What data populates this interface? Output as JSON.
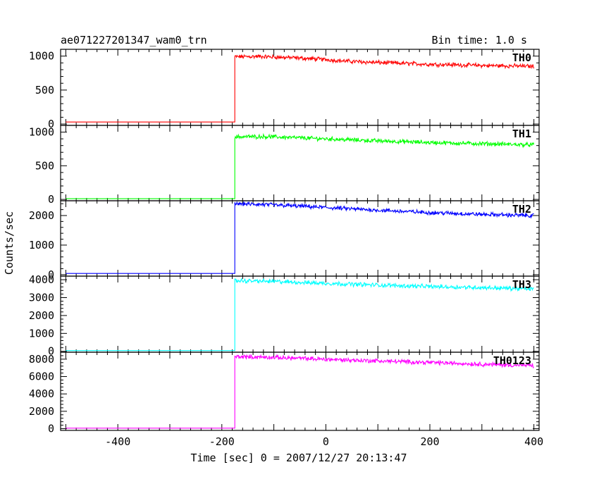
{
  "chart_data": {
    "type": "line",
    "title": "ae071227201347_wam0_trn",
    "bin_label": "Bin time: 1.0 s",
    "xlabel": "Time [sec] 0 = 2007/12/27 20:13:47",
    "ylabel": "Counts/sec",
    "xlim": [
      -510,
      410
    ],
    "xticks": [
      -400,
      -200,
      0,
      200,
      400
    ],
    "onset_x": -175,
    "panels": [
      {
        "name": "TH0",
        "color": "#ff0000",
        "ylim": [
          -20,
          1100
        ],
        "yticks": [
          0,
          500,
          1000
        ],
        "baseline": 30,
        "points": [
          [
            -175,
            990
          ],
          [
            -130,
            995
          ],
          [
            -60,
            975
          ],
          [
            0,
            950
          ],
          [
            40,
            925
          ],
          [
            100,
            905
          ],
          [
            200,
            880
          ],
          [
            300,
            862
          ],
          [
            400,
            850
          ]
        ]
      },
      {
        "name": "TH1",
        "color": "#00ff00",
        "ylim": [
          -20,
          1100
        ],
        "yticks": [
          0,
          500,
          1000
        ],
        "baseline": 10,
        "points": [
          [
            -175,
            930
          ],
          [
            -120,
            935
          ],
          [
            -50,
            915
          ],
          [
            0,
            900
          ],
          [
            100,
            870
          ],
          [
            200,
            845
          ],
          [
            300,
            828
          ],
          [
            400,
            810
          ]
        ]
      },
      {
        "name": "TH2",
        "color": "#0000ff",
        "ylim": [
          -50,
          2500
        ],
        "yticks": [
          0,
          1000,
          2000
        ],
        "baseline": 40,
        "points": [
          [
            -175,
            2400
          ],
          [
            -120,
            2370
          ],
          [
            -50,
            2320
          ],
          [
            0,
            2270
          ],
          [
            100,
            2180
          ],
          [
            200,
            2100
          ],
          [
            300,
            2040
          ],
          [
            400,
            2000
          ]
        ]
      },
      {
        "name": "TH3",
        "color": "#00ffff",
        "ylim": [
          -50,
          4200
        ],
        "yticks": [
          0,
          1000,
          2000,
          3000,
          4000
        ],
        "baseline": 40,
        "points": [
          [
            -175,
            3950
          ],
          [
            -100,
            3900
          ],
          [
            -30,
            3830
          ],
          [
            0,
            3800
          ],
          [
            100,
            3700
          ],
          [
            200,
            3620
          ],
          [
            300,
            3560
          ],
          [
            400,
            3480
          ]
        ]
      },
      {
        "name": "TH0123",
        "color": "#ff00ff",
        "ylim": [
          -200,
          8800
        ],
        "yticks": [
          0,
          2000,
          4000,
          6000,
          8000
        ],
        "baseline": 60,
        "points": [
          [
            -175,
            8300
          ],
          [
            -100,
            8200
          ],
          [
            -30,
            8050
          ],
          [
            0,
            7980
          ],
          [
            100,
            7800
          ],
          [
            200,
            7620
          ],
          [
            300,
            7420
          ],
          [
            400,
            7250
          ]
        ]
      }
    ]
  }
}
